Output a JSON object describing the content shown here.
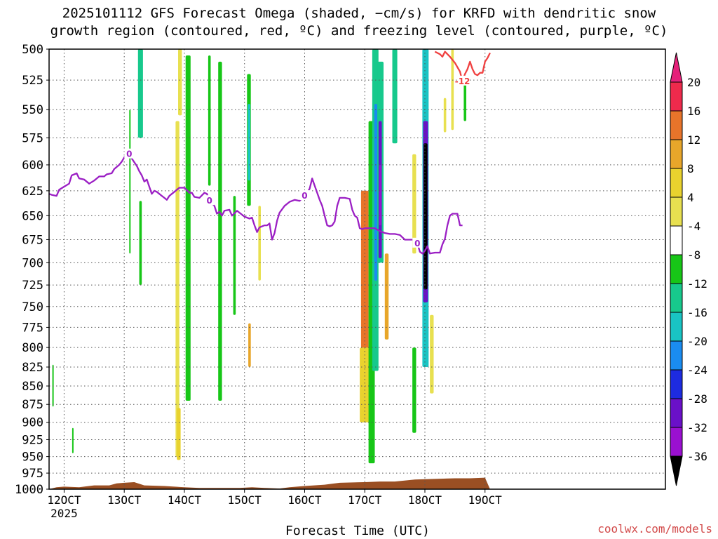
{
  "header": {
    "title_line1": "2025101112 GFS Forecast Omega (shaded, −cm/s) for KRFD with dendritic snow",
    "title_line2": "growth region (contoured, red, ºC) and freezing level (contoured, purple, ºC)"
  },
  "footer": {
    "xlabel": "Forecast Time (UTC)",
    "credit": "coolwx.com/models"
  },
  "chart_data": {
    "type": "heatmap",
    "title": "2025101112 GFS Forecast Omega (shaded, −cm/s) for KRFD with dendritic snow growth region (contoured, red, ºC) and freezing level (contoured, purple, ºC)",
    "xlabel": "Forecast Time (UTC)",
    "ylabel": "",
    "x_range_hours": [
      -6,
      240
    ],
    "y_range_hpa": [
      500,
      1000
    ],
    "y_scale": "log",
    "grid": true,
    "x_ticks": [
      {
        "hour": 0,
        "label": "12OCT",
        "sublabel": "2025"
      },
      {
        "hour": 24,
        "label": "13OCT"
      },
      {
        "hour": 48,
        "label": "14OCT"
      },
      {
        "hour": 72,
        "label": "15OCT"
      },
      {
        "hour": 96,
        "label": "16OCT"
      },
      {
        "hour": 120,
        "label": "17OCT"
      },
      {
        "hour": 144,
        "label": "18OCT"
      },
      {
        "hour": 168,
        "label": "19OCT"
      }
    ],
    "y_ticks": [
      500,
      525,
      550,
      575,
      600,
      625,
      650,
      675,
      700,
      725,
      750,
      775,
      800,
      825,
      850,
      875,
      900,
      925,
      950,
      975,
      1000
    ],
    "colorbar": {
      "levels": [
        20,
        16,
        12,
        8,
        4,
        -4,
        -8,
        -12,
        -16,
        -20,
        -24,
        -28,
        -32,
        -36
      ],
      "colors": [
        "#ee2a4c",
        "#e8742a",
        "#e8a62a",
        "#e9d22e",
        "#e8e050",
        "#ffffff",
        "#17c617",
        "#17c98c",
        "#19c4c4",
        "#1a8cf0",
        "#1d2be0",
        "#6a10c8",
        "#9a10d0",
        "#a8a8a8",
        "#000000"
      ],
      "top_color": "#e5217a",
      "bottom_color": "#000000"
    },
    "freezing_level": {
      "label": "0",
      "color": "#9b1fc4",
      "points": [
        [
          -6,
          628
        ],
        [
          -5,
          629
        ],
        [
          -3,
          630
        ],
        [
          -2,
          624
        ],
        [
          0,
          621
        ],
        [
          2,
          618
        ],
        [
          3,
          610
        ],
        [
          5,
          608
        ],
        [
          6,
          613
        ],
        [
          8,
          614
        ],
        [
          10,
          618
        ],
        [
          12,
          615
        ],
        [
          14,
          611
        ],
        [
          16,
          611
        ],
        [
          17,
          609
        ],
        [
          19,
          608
        ],
        [
          20,
          604
        ],
        [
          22,
          600
        ],
        [
          23,
          597
        ],
        [
          24,
          593
        ],
        [
          25,
          590
        ],
        [
          26,
          590
        ],
        [
          27,
          594
        ],
        [
          29,
          601
        ],
        [
          30,
          606
        ],
        [
          31,
          610
        ],
        [
          32,
          616
        ],
        [
          33,
          614
        ],
        [
          34,
          621
        ],
        [
          35,
          628
        ],
        [
          36,
          625
        ],
        [
          37,
          626
        ],
        [
          39,
          630
        ],
        [
          40,
          632
        ],
        [
          41,
          634
        ],
        [
          42,
          630
        ],
        [
          44,
          626
        ],
        [
          46,
          622
        ],
        [
          48,
          622
        ],
        [
          50,
          627
        ],
        [
          51,
          627
        ],
        [
          52,
          631
        ],
        [
          54,
          632
        ],
        [
          56,
          627
        ],
        [
          57,
          628
        ],
        [
          58,
          635
        ],
        [
          60,
          640
        ],
        [
          61,
          648
        ],
        [
          62,
          646
        ],
        [
          63,
          650
        ],
        [
          64,
          645
        ],
        [
          66,
          644
        ],
        [
          67,
          650
        ],
        [
          69,
          645
        ],
        [
          71,
          649
        ],
        [
          72,
          651
        ],
        [
          74,
          653
        ],
        [
          75,
          652
        ],
        [
          76,
          660
        ],
        [
          77,
          667
        ],
        [
          78,
          662
        ],
        [
          80,
          660
        ],
        [
          81,
          660
        ],
        [
          82,
          658
        ],
        [
          83,
          675
        ],
        [
          84,
          668
        ],
        [
          85,
          655
        ],
        [
          86,
          647
        ],
        [
          88,
          640
        ],
        [
          90,
          636
        ],
        [
          92,
          634
        ],
        [
          94,
          635
        ],
        [
          96,
          630
        ],
        [
          97,
          627
        ],
        [
          98,
          623
        ],
        [
          99,
          613
        ],
        [
          100,
          620
        ],
        [
          102,
          634
        ],
        [
          103,
          640
        ],
        [
          104,
          650
        ],
        [
          105,
          660
        ],
        [
          106,
          661
        ],
        [
          107,
          660
        ],
        [
          108,
          656
        ],
        [
          109,
          640
        ],
        [
          110,
          632
        ],
        [
          112,
          632
        ],
        [
          114,
          633
        ],
        [
          115,
          644
        ],
        [
          116,
          650
        ],
        [
          117,
          652
        ],
        [
          118,
          663
        ],
        [
          119,
          664
        ],
        [
          120,
          663
        ],
        [
          122,
          663
        ],
        [
          124,
          663
        ],
        [
          126,
          666
        ],
        [
          128,
          668
        ],
        [
          130,
          669
        ],
        [
          132,
          669
        ],
        [
          134,
          670
        ],
        [
          136,
          675
        ],
        [
          138,
          675
        ],
        [
          140,
          675
        ],
        [
          141,
          679
        ],
        [
          142,
          688
        ],
        [
          143,
          690
        ],
        [
          144,
          687
        ],
        [
          145,
          682
        ],
        [
          146,
          690
        ],
        [
          148,
          689
        ],
        [
          150,
          689
        ],
        [
          151,
          680
        ],
        [
          152,
          674
        ],
        [
          153,
          660
        ],
        [
          154,
          650
        ],
        [
          155,
          648
        ],
        [
          157,
          648
        ],
        [
          158,
          660
        ],
        [
          159,
          660
        ]
      ]
    },
    "dendritic_growth": {
      "label": "-12",
      "color": "#f04040",
      "points": [
        [
          148,
          502
        ],
        [
          150,
          504
        ],
        [
          151,
          506
        ],
        [
          152,
          502
        ],
        [
          154,
          506
        ],
        [
          156,
          511
        ],
        [
          158,
          518
        ],
        [
          159,
          526
        ],
        [
          160,
          520
        ],
        [
          161,
          516
        ],
        [
          162,
          510
        ],
        [
          163,
          516
        ],
        [
          164,
          520
        ],
        [
          165,
          521
        ],
        [
          166,
          519
        ],
        [
          167,
          519
        ],
        [
          168,
          510
        ],
        [
          169,
          507
        ],
        [
          170,
          503
        ]
      ]
    },
    "surface_terrain": {
      "color": "#9a4f23",
      "points": [
        [
          -6,
          1000
        ],
        [
          -3,
          997
        ],
        [
          0,
          996
        ],
        [
          6,
          997
        ],
        [
          12,
          994
        ],
        [
          18,
          994
        ],
        [
          21,
          991
        ],
        [
          24,
          990
        ],
        [
          28,
          989
        ],
        [
          32,
          994
        ],
        [
          40,
          995
        ],
        [
          48,
          997
        ],
        [
          54,
          998
        ],
        [
          60,
          998
        ],
        [
          70,
          998
        ],
        [
          75,
          997
        ],
        [
          80,
          998
        ],
        [
          86,
          999
        ],
        [
          90,
          997
        ],
        [
          96,
          995
        ],
        [
          104,
          993
        ],
        [
          110,
          990
        ],
        [
          120,
          989
        ],
        [
          126,
          988
        ],
        [
          132,
          988
        ],
        [
          140,
          985
        ],
        [
          148,
          984
        ],
        [
          156,
          983
        ],
        [
          162,
          983
        ],
        [
          168,
          982
        ],
        [
          170,
          1000
        ]
      ]
    },
    "omega_shading": [
      {
        "hour_start": -4.7,
        "hour_end": -4.3,
        "p_top": 822,
        "p_bottom": 878,
        "class": -8
      },
      {
        "hour_start": 3.2,
        "hour_end": 3.7,
        "p_top": 908,
        "p_bottom": 945,
        "class": -8
      },
      {
        "hour_start": 26.0,
        "hour_end": 26.5,
        "p_top": 550,
        "p_bottom": 690,
        "class": -8
      },
      {
        "hour_start": 29.5,
        "hour_end": 31.5,
        "p_top": 500,
        "p_bottom": 575,
        "class": -12
      },
      {
        "hour_start": 30.0,
        "hour_end": 31.0,
        "p_top": 635,
        "p_bottom": 725,
        "class": -8
      },
      {
        "hour_start": 45.5,
        "hour_end": 47.0,
        "p_top": 500,
        "p_bottom": 555,
        "class": 4
      },
      {
        "hour_start": 44.5,
        "hour_end": 46.0,
        "p_top": 560,
        "p_bottom": 950,
        "class": 4
      },
      {
        "hour_start": 45.0,
        "hour_end": 46.5,
        "p_top": 880,
        "p_bottom": 955,
        "class": 8
      },
      {
        "hour_start": 48.5,
        "hour_end": 50.5,
        "p_top": 505,
        "p_bottom": 870,
        "class": -8
      },
      {
        "hour_start": 57.5,
        "hour_end": 58.5,
        "p_top": 505,
        "p_bottom": 620,
        "class": -8
      },
      {
        "hour_start": 61.5,
        "hour_end": 63.0,
        "p_top": 510,
        "p_bottom": 870,
        "class": -8
      },
      {
        "hour_start": 67.5,
        "hour_end": 68.5,
        "p_top": 630,
        "p_bottom": 760,
        "class": -8
      },
      {
        "hour_start": 73.0,
        "hour_end": 74.5,
        "p_top": 520,
        "p_bottom": 640,
        "class": -8
      },
      {
        "hour_start": 73.3,
        "hour_end": 74.3,
        "p_top": 545,
        "p_bottom": 615,
        "class": -16
      },
      {
        "hour_start": 73.5,
        "hour_end": 74.5,
        "p_top": 770,
        "p_bottom": 825,
        "class": 12
      },
      {
        "hour_start": 77.5,
        "hour_end": 78.5,
        "p_top": 640,
        "p_bottom": 720,
        "class": 4
      },
      {
        "hour_start": 118.5,
        "hour_end": 121.5,
        "p_top": 625,
        "p_bottom": 880,
        "class": 16
      },
      {
        "hour_start": 118.0,
        "hour_end": 122.0,
        "p_top": 800,
        "p_bottom": 900,
        "class": 8
      },
      {
        "hour_start": 121.5,
        "hour_end": 124.0,
        "p_top": 560,
        "p_bottom": 960,
        "class": -8
      },
      {
        "hour_start": 123.0,
        "hour_end": 125.5,
        "p_top": 500,
        "p_bottom": 830,
        "class": -12
      },
      {
        "hour_start": 123.8,
        "hour_end": 125.0,
        "p_top": 545,
        "p_bottom": 720,
        "class": -20
      },
      {
        "hour_start": 125.0,
        "hour_end": 127.5,
        "p_top": 510,
        "p_bottom": 700,
        "class": -12
      },
      {
        "hour_start": 125.5,
        "hour_end": 126.8,
        "p_top": 560,
        "p_bottom": 695,
        "class": -28
      },
      {
        "hour_start": 125.7,
        "hour_end": 126.6,
        "p_top": 600,
        "p_bottom": 660,
        "class": -32
      },
      {
        "hour_start": 128.0,
        "hour_end": 129.5,
        "p_top": 690,
        "p_bottom": 790,
        "class": 12
      },
      {
        "hour_start": 131.0,
        "hour_end": 133.0,
        "p_top": 500,
        "p_bottom": 580,
        "class": -12
      },
      {
        "hour_start": 139.0,
        "hour_end": 140.5,
        "p_top": 590,
        "p_bottom": 690,
        "class": 4
      },
      {
        "hour_start": 139.0,
        "hour_end": 140.5,
        "p_top": 800,
        "p_bottom": 915,
        "class": -8
      },
      {
        "hour_start": 143.0,
        "hour_end": 145.5,
        "p_top": 500,
        "p_bottom": 825,
        "class": -16
      },
      {
        "hour_start": 143.3,
        "hour_end": 145.2,
        "p_top": 560,
        "p_bottom": 745,
        "class": -28
      },
      {
        "hour_start": 143.5,
        "hour_end": 145.0,
        "p_top": 580,
        "p_bottom": 730,
        "class": -36
      },
      {
        "hour_start": 146.0,
        "hour_end": 147.5,
        "p_top": 760,
        "p_bottom": 860,
        "class": 4
      },
      {
        "hour_start": 151.5,
        "hour_end": 152.5,
        "p_top": 540,
        "p_bottom": 570,
        "class": 4
      },
      {
        "hour_start": 154.5,
        "hour_end": 155.5,
        "p_top": 500,
        "p_bottom": 568,
        "class": 4
      },
      {
        "hour_start": 159.5,
        "hour_end": 160.5,
        "p_top": 525,
        "p_bottom": 560,
        "class": -8
      }
    ]
  }
}
